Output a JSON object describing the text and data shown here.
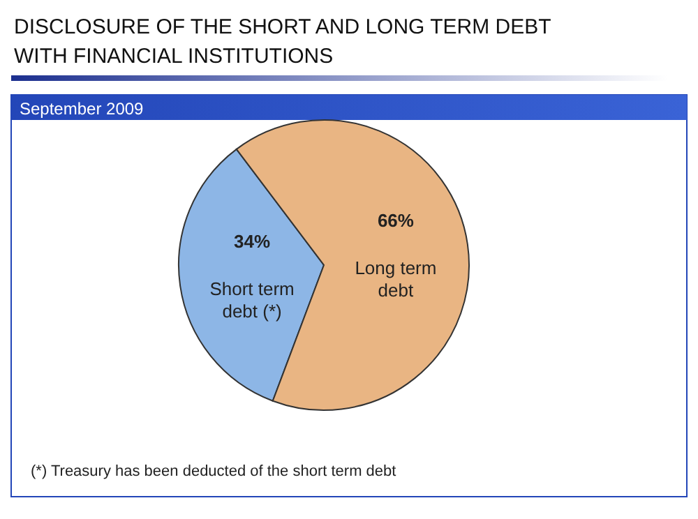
{
  "chart_data": {
    "type": "pie",
    "title": "DISCLOSURE OF THE SHORT AND LONG TERM DEBT WITH FINANCIAL INSTITUTIONS",
    "subtitle": "September 2009",
    "categories": [
      "Short term debt (*)",
      "Long term debt"
    ],
    "values": [
      34,
      66
    ],
    "colors": [
      "#8db6e6",
      "#e9b583"
    ],
    "value_labels": [
      "34%",
      "66%"
    ],
    "annotations": [
      "(*) Treasury has been deducted of the short term debt"
    ]
  }
}
